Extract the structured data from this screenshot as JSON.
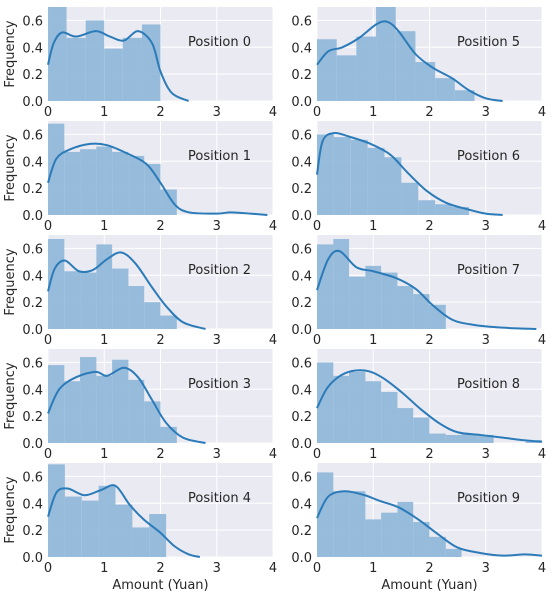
{
  "chart_data": {
    "type": "histogram",
    "grid": true,
    "xlabel": "Amount (Yuan)",
    "ylabel": "Frequency",
    "xlim": [
      0,
      4
    ],
    "ylim": [
      0,
      0.7
    ],
    "xticks": [
      "0",
      "1",
      "2",
      "3",
      "4"
    ],
    "yticks": [
      "0.0",
      "0.2",
      "0.4",
      "0.6"
    ],
    "colors": {
      "bar": "#92b8d9",
      "curve": "#2b7bb9",
      "panel_bg": "#eaeaf2",
      "grid": "#ffffff"
    },
    "panels": [
      {
        "label": "Position 0",
        "bin_edges": [
          0,
          0.33,
          0.67,
          1.0,
          1.33,
          1.67,
          2.0
        ],
        "bars": [
          0.73,
          0.47,
          0.6,
          0.39,
          0.47,
          0.57
        ],
        "kde": [
          [
            0,
            0.27
          ],
          [
            0.1,
            0.43
          ],
          [
            0.25,
            0.51
          ],
          [
            0.5,
            0.48
          ],
          [
            0.85,
            0.52
          ],
          [
            1.1,
            0.48
          ],
          [
            1.35,
            0.45
          ],
          [
            1.6,
            0.52
          ],
          [
            1.85,
            0.43
          ],
          [
            2.0,
            0.22
          ],
          [
            2.2,
            0.06
          ],
          [
            2.5,
            0.0
          ]
        ]
      },
      {
        "label": "Position 1",
        "bin_edges": [
          0,
          0.29,
          0.57,
          0.86,
          1.14,
          1.43,
          1.71,
          2.0,
          2.29
        ],
        "bars": [
          0.68,
          0.47,
          0.49,
          0.51,
          0.47,
          0.44,
          0.38,
          0.19
        ],
        "kde": [
          [
            0,
            0.24
          ],
          [
            0.15,
            0.42
          ],
          [
            0.4,
            0.49
          ],
          [
            0.75,
            0.53
          ],
          [
            1.05,
            0.52
          ],
          [
            1.4,
            0.46
          ],
          [
            1.75,
            0.38
          ],
          [
            2.0,
            0.24
          ],
          [
            2.25,
            0.08
          ],
          [
            2.5,
            0.02
          ],
          [
            3.0,
            0.01
          ],
          [
            3.25,
            0.02
          ],
          [
            3.6,
            0.01
          ],
          [
            3.9,
            0.0
          ]
        ]
      },
      {
        "label": "Position 2",
        "bin_edges": [
          0,
          0.29,
          0.57,
          0.86,
          1.14,
          1.43,
          1.71,
          2.0,
          2.29
        ],
        "bars": [
          0.67,
          0.43,
          0.42,
          0.63,
          0.45,
          0.32,
          0.2,
          0.1
        ],
        "kde": [
          [
            0,
            0.28
          ],
          [
            0.12,
            0.45
          ],
          [
            0.3,
            0.51
          ],
          [
            0.55,
            0.43
          ],
          [
            0.8,
            0.44
          ],
          [
            1.05,
            0.52
          ],
          [
            1.3,
            0.57
          ],
          [
            1.55,
            0.49
          ],
          [
            1.85,
            0.31
          ],
          [
            2.1,
            0.17
          ],
          [
            2.4,
            0.05
          ],
          [
            2.8,
            0.0
          ]
        ]
      },
      {
        "label": "Position 3",
        "bin_edges": [
          0,
          0.29,
          0.57,
          0.86,
          1.14,
          1.43,
          1.71,
          2.0,
          2.29
        ],
        "bars": [
          0.58,
          0.46,
          0.64,
          0.5,
          0.62,
          0.47,
          0.31,
          0.12
        ],
        "kde": [
          [
            0,
            0.22
          ],
          [
            0.2,
            0.4
          ],
          [
            0.5,
            0.49
          ],
          [
            0.85,
            0.53
          ],
          [
            1.05,
            0.5
          ],
          [
            1.35,
            0.56
          ],
          [
            1.6,
            0.49
          ],
          [
            1.85,
            0.32
          ],
          [
            2.1,
            0.15
          ],
          [
            2.4,
            0.04
          ],
          [
            2.8,
            0.0
          ]
        ]
      },
      {
        "label": "Position 4",
        "bin_edges": [
          0,
          0.3,
          0.6,
          0.9,
          1.2,
          1.5,
          1.8,
          2.1
        ],
        "bars": [
          0.69,
          0.45,
          0.42,
          0.53,
          0.39,
          0.22,
          0.32
        ],
        "kde": [
          [
            0,
            0.3
          ],
          [
            0.15,
            0.48
          ],
          [
            0.35,
            0.51
          ],
          [
            0.65,
            0.46
          ],
          [
            0.95,
            0.5
          ],
          [
            1.2,
            0.53
          ],
          [
            1.45,
            0.39
          ],
          [
            1.7,
            0.28
          ],
          [
            2.0,
            0.18
          ],
          [
            2.25,
            0.08
          ],
          [
            2.5,
            0.02
          ],
          [
            2.7,
            0.0
          ]
        ]
      },
      {
        "label": "Position 5",
        "bin_edges": [
          0,
          0.35,
          0.7,
          1.05,
          1.4,
          1.75,
          2.1,
          2.45,
          2.8,
          3.15
        ],
        "bars": [
          0.46,
          0.34,
          0.48,
          0.7,
          0.52,
          0.29,
          0.17,
          0.08,
          0.0
        ],
        "kde": [
          [
            0,
            0.27
          ],
          [
            0.2,
            0.37
          ],
          [
            0.45,
            0.4
          ],
          [
            0.75,
            0.47
          ],
          [
            1.05,
            0.57
          ],
          [
            1.25,
            0.59
          ],
          [
            1.45,
            0.52
          ],
          [
            1.75,
            0.35
          ],
          [
            2.05,
            0.25
          ],
          [
            2.4,
            0.17
          ],
          [
            2.7,
            0.08
          ],
          [
            3.0,
            0.02
          ],
          [
            3.3,
            0.0
          ]
        ]
      },
      {
        "label": "Position 6",
        "bin_edges": [
          0,
          0.3,
          0.6,
          0.9,
          1.2,
          1.5,
          1.8,
          2.1,
          2.4,
          2.7
        ],
        "bars": [
          0.6,
          0.58,
          0.56,
          0.5,
          0.43,
          0.24,
          0.11,
          0.08,
          0.06
        ],
        "kde": [
          [
            0,
            0.3
          ],
          [
            0.1,
            0.55
          ],
          [
            0.3,
            0.61
          ],
          [
            0.6,
            0.58
          ],
          [
            0.95,
            0.53
          ],
          [
            1.3,
            0.45
          ],
          [
            1.6,
            0.32
          ],
          [
            1.95,
            0.18
          ],
          [
            2.3,
            0.09
          ],
          [
            2.7,
            0.04
          ],
          [
            3.0,
            0.01
          ],
          [
            3.3,
            0.0
          ]
        ]
      },
      {
        "label": "Position 7",
        "bin_edges": [
          0,
          0.29,
          0.57,
          0.86,
          1.14,
          1.43,
          1.71,
          2.0,
          2.29,
          2.57
        ],
        "bars": [
          0.63,
          0.67,
          0.39,
          0.47,
          0.42,
          0.32,
          0.26,
          0.18,
          0.0
        ],
        "kde": [
          [
            0,
            0.29
          ],
          [
            0.2,
            0.52
          ],
          [
            0.4,
            0.58
          ],
          [
            0.7,
            0.46
          ],
          [
            1.0,
            0.43
          ],
          [
            1.4,
            0.38
          ],
          [
            1.75,
            0.3
          ],
          [
            2.05,
            0.18
          ],
          [
            2.4,
            0.07
          ],
          [
            2.8,
            0.03
          ],
          [
            3.3,
            0.01
          ],
          [
            3.9,
            0.0
          ]
        ]
      },
      {
        "label": "Position 8",
        "bin_edges": [
          0,
          0.29,
          0.57,
          0.86,
          1.14,
          1.43,
          1.71,
          2.0,
          2.29,
          2.57,
          2.86,
          3.14,
          3.43,
          3.71,
          4.0
        ],
        "bars": [
          0.6,
          0.5,
          0.53,
          0.46,
          0.38,
          0.26,
          0.19,
          0.07,
          0.06,
          0.07,
          0.06,
          0.0,
          0.0,
          0.02
        ],
        "kde": [
          [
            0,
            0.26
          ],
          [
            0.2,
            0.42
          ],
          [
            0.5,
            0.52
          ],
          [
            0.85,
            0.54
          ],
          [
            1.15,
            0.49
          ],
          [
            1.5,
            0.38
          ],
          [
            1.85,
            0.25
          ],
          [
            2.2,
            0.14
          ],
          [
            2.5,
            0.08
          ],
          [
            2.9,
            0.06
          ],
          [
            3.3,
            0.04
          ],
          [
            3.7,
            0.02
          ],
          [
            4.0,
            0.01
          ]
        ]
      },
      {
        "label": "Position 9",
        "bin_edges": [
          0,
          0.29,
          0.57,
          0.86,
          1.14,
          1.43,
          1.71,
          2.0,
          2.29,
          2.57,
          2.86
        ],
        "bars": [
          0.63,
          0.49,
          0.49,
          0.28,
          0.33,
          0.41,
          0.26,
          0.15,
          0.06,
          0.0
        ],
        "kde": [
          [
            0,
            0.29
          ],
          [
            0.2,
            0.45
          ],
          [
            0.5,
            0.49
          ],
          [
            0.85,
            0.46
          ],
          [
            1.1,
            0.42
          ],
          [
            1.45,
            0.37
          ],
          [
            1.8,
            0.28
          ],
          [
            2.15,
            0.17
          ],
          [
            2.5,
            0.07
          ],
          [
            2.9,
            0.03
          ],
          [
            3.3,
            0.01
          ],
          [
            3.7,
            0.02
          ],
          [
            4.0,
            0.01
          ]
        ]
      }
    ]
  }
}
